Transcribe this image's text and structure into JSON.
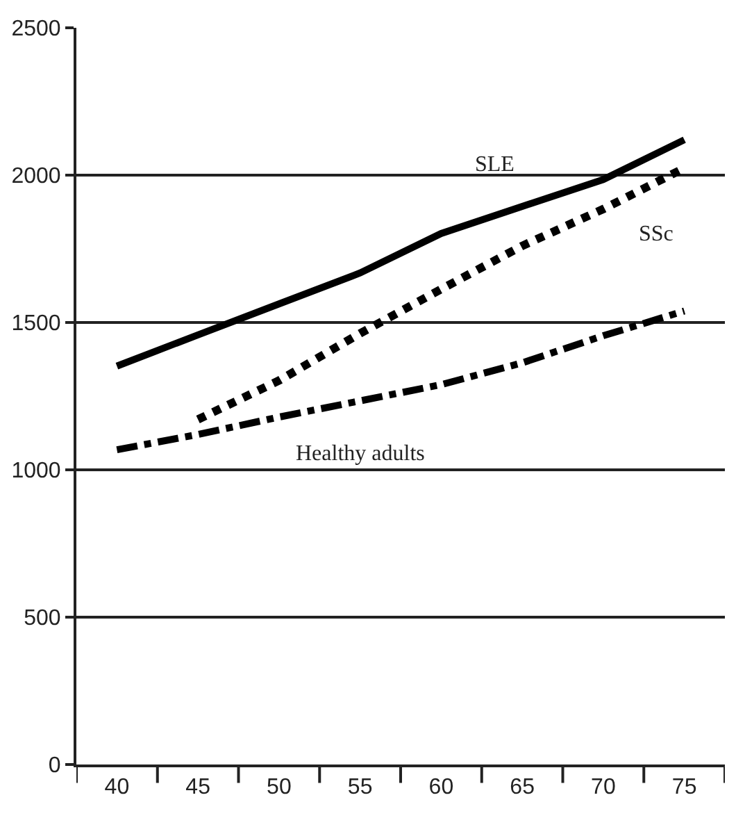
{
  "chart_data": {
    "type": "line",
    "categories": [
      "40",
      "45",
      "50",
      "55",
      "60",
      "65",
      "70",
      "75"
    ],
    "series": [
      {
        "name": "SLE",
        "color": "#000000",
        "line_style": "solid",
        "values": [
          1352,
          1458,
          1563,
          1668,
          1802,
          1894,
          1985,
          2120
        ]
      },
      {
        "name": "SSc",
        "color": "#000000",
        "line_style": "dotted",
        "values": [
          null,
          1171,
          1303,
          1463,
          1613,
          1760,
          1885,
          2024
        ]
      },
      {
        "name": "Healthy adults",
        "color": "#000000",
        "line_style": "dashdot",
        "values": [
          1068,
          1120,
          1179,
          1234,
          1289,
          1363,
          1455,
          1539
        ]
      }
    ],
    "ylim": [
      0,
      2500
    ],
    "yticks": [
      0,
      500,
      1000,
      1500,
      2000,
      2500
    ],
    "grid": "y",
    "legend": false,
    "marker": "none"
  }
}
